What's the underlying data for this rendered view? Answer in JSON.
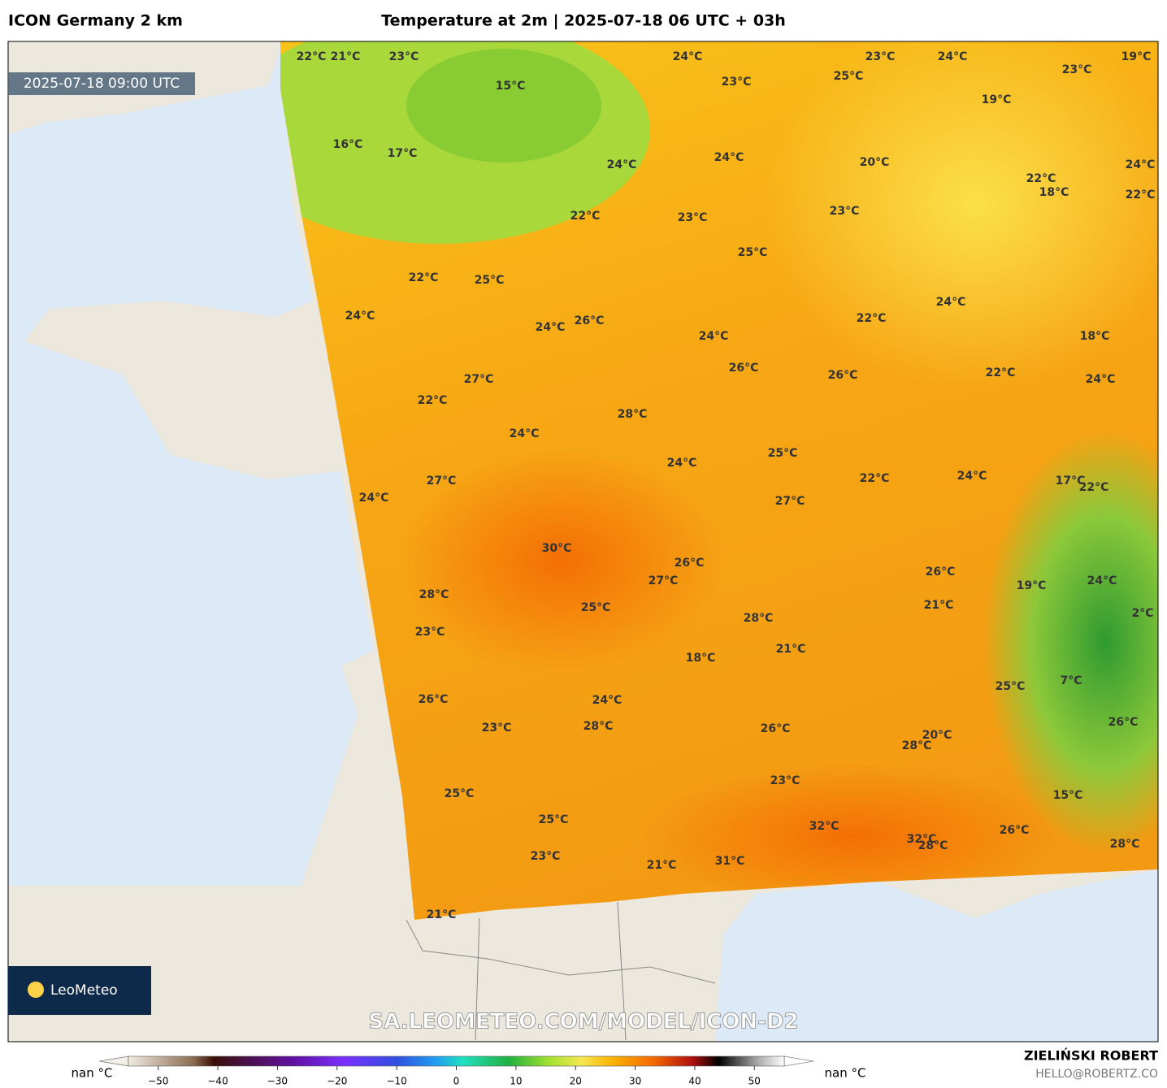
{
  "header": {
    "left": "ICON Germany 2 km",
    "center": "Temperature at 2m | 2025-07-18 06 UTC + 03h"
  },
  "map": {
    "timestamp": "2025-07-18 09:00 UTC",
    "watermark": "SA.LEOMETEO.COM/MODEL/ICON-D2",
    "logo": "LeoMeteo",
    "labels": [
      "22°C",
      "21°C",
      "23°C",
      "15°C",
      "16°C",
      "17°C",
      "24°C",
      "23°C",
      "25°C",
      "23°C",
      "24°C",
      "23°C",
      "19°C",
      "19°C",
      "24°C",
      "24°C",
      "20°C",
      "22°C",
      "18°C",
      "24°C",
      "22°C",
      "22°C",
      "23°C",
      "23°C",
      "25°C",
      "22°C",
      "25°C",
      "24°C",
      "24°C",
      "26°C",
      "24°C",
      "22°C",
      "24°C",
      "18°C",
      "26°C",
      "26°C",
      "22°C",
      "24°C",
      "27°C",
      "22°C",
      "28°C",
      "24°C",
      "25°C",
      "24°C",
      "22°C",
      "24°C",
      "17°C",
      "22°C",
      "27°C",
      "24°C",
      "27°C",
      "30°C",
      "26°C",
      "27°C",
      "26°C",
      "19°C",
      "24°C",
      "28°C",
      "25°C",
      "21°C",
      "2°C",
      "28°C",
      "23°C",
      "21°C",
      "18°C",
      "7°C",
      "25°C",
      "26°C",
      "24°C",
      "28°C",
      "23°C",
      "26°C",
      "26°C",
      "20°C",
      "28°C",
      "23°C",
      "15°C",
      "25°C",
      "25°C",
      "32°C",
      "26°C",
      "32°C",
      "28°C",
      "28°C",
      "23°C",
      "21°C",
      "31°C",
      "21°C"
    ]
  },
  "colorbar": {
    "range": [
      -55,
      55
    ],
    "under_label": "nan °C",
    "over_label": "nan °C",
    "ticks": [
      {
        "value": -50,
        "label": "−50"
      },
      {
        "value": -40,
        "label": "−40"
      },
      {
        "value": -30,
        "label": "−30"
      },
      {
        "value": -20,
        "label": "−20"
      },
      {
        "value": -10,
        "label": "−10"
      },
      0,
      10,
      20,
      30,
      40,
      50
    ]
  },
  "footer": {
    "author": "ZIELIŃSKI ROBERT",
    "email": "HELLO@ROBERTZ.CO"
  }
}
